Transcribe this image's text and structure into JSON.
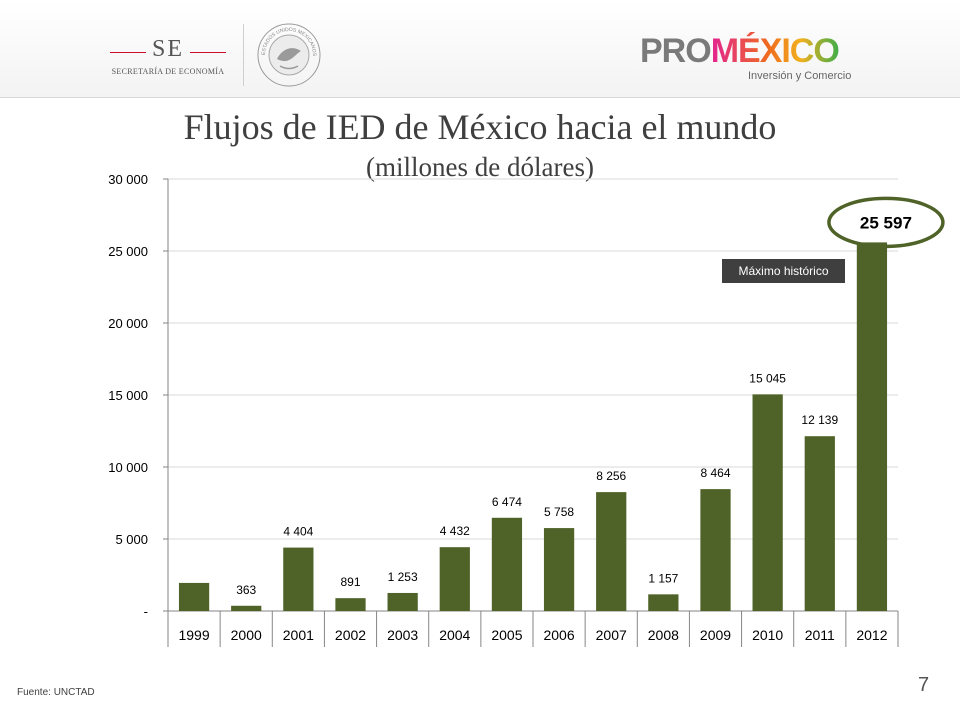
{
  "header": {
    "se_abbr": "SE",
    "se_name": "SECRETARÍA DE ECONOMÍA",
    "seal_text": "ESTADOS UNIDOS MEXICANOS",
    "promexico_pro": "PRO",
    "promexico_mexico": "MÉXICO",
    "promexico_tagline": "Inversión y Comercio"
  },
  "footer": {
    "source": "Fuente: UNCTAD",
    "page_number": "7"
  },
  "chart_data": {
    "type": "bar",
    "title": "Flujos de IED de México hacia el mundo",
    "subtitle": "(millones de dólares)",
    "xlabel": "",
    "ylabel": "",
    "categories": [
      "1999",
      "2000",
      "2001",
      "2002",
      "2003",
      "2004",
      "2005",
      "2006",
      "2007",
      "2008",
      "2009",
      "2010",
      "2011",
      "2012"
    ],
    "values": [
      1950,
      363,
      4404,
      891,
      1253,
      4432,
      6474,
      5758,
      8256,
      1157,
      8464,
      15045,
      12139,
      25597
    ],
    "data_labels": [
      "",
      "363",
      "4 404",
      "891",
      "1 253",
      "4 432",
      "6 474",
      "5 758",
      "8 256",
      "1 157",
      "8 464",
      "15 045",
      "12 139",
      "25 597"
    ],
    "ylim": [
      0,
      30000
    ],
    "yticks": [
      0,
      5000,
      10000,
      15000,
      20000,
      25000,
      30000
    ],
    "ytick_labels": [
      "-",
      "5 000",
      "10 000",
      "15 000",
      "20 000",
      "25 000",
      "30 000"
    ],
    "grid": true,
    "bar_color": "#4f6228",
    "highlight_color": "#4f6228",
    "annotation": "Máximo histórico"
  }
}
